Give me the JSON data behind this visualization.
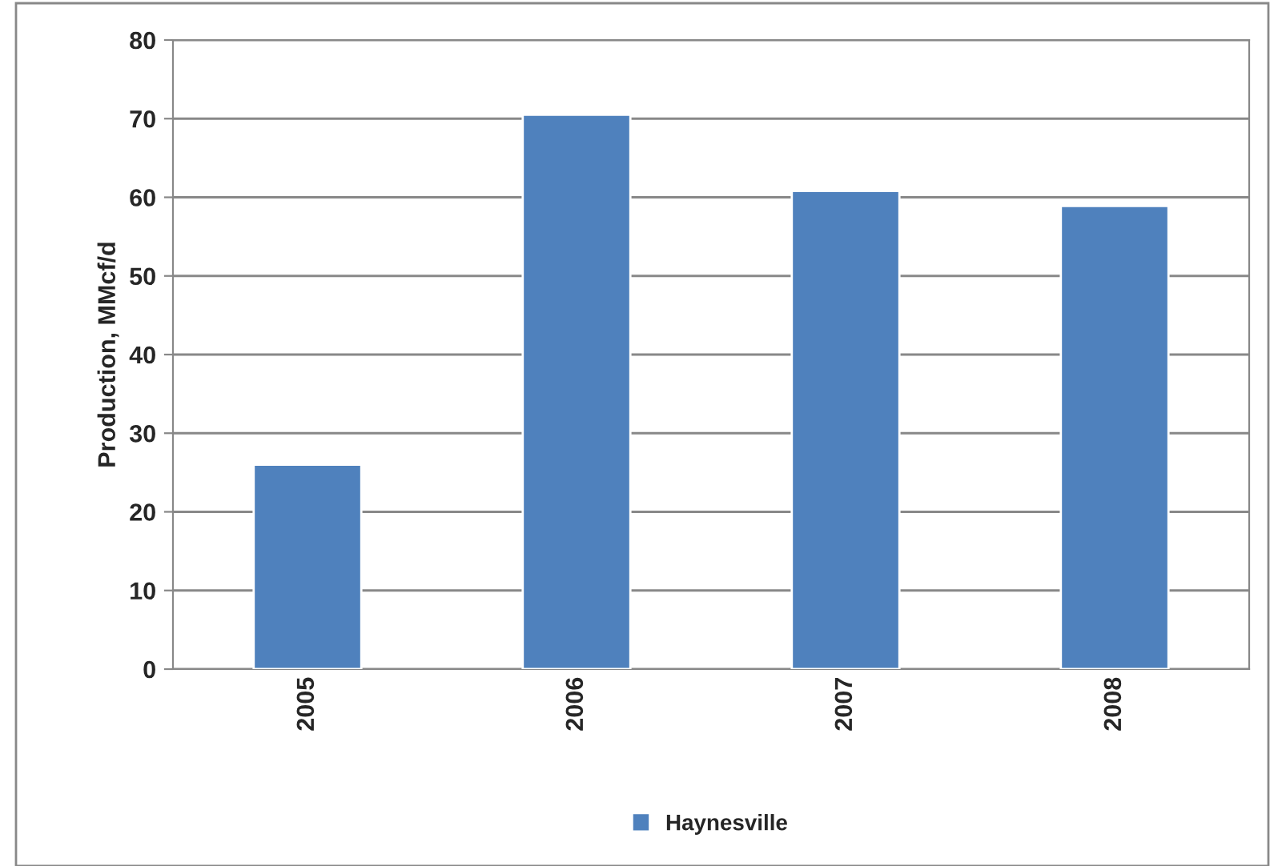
{
  "chart_data": {
    "type": "bar",
    "ylabel": "Production, MMcf/d",
    "categories": [
      "2005",
      "2006",
      "2007",
      "2008"
    ],
    "series": [
      {
        "name": "Haynesville",
        "color": "#4f81bd",
        "values": [
          26,
          70.5,
          60.8,
          58.9
        ]
      }
    ],
    "ylim": [
      0,
      80
    ],
    "yticks": [
      0,
      10,
      20,
      30,
      40,
      50,
      60,
      70,
      80
    ],
    "grid": "y",
    "legend": "bottom"
  }
}
